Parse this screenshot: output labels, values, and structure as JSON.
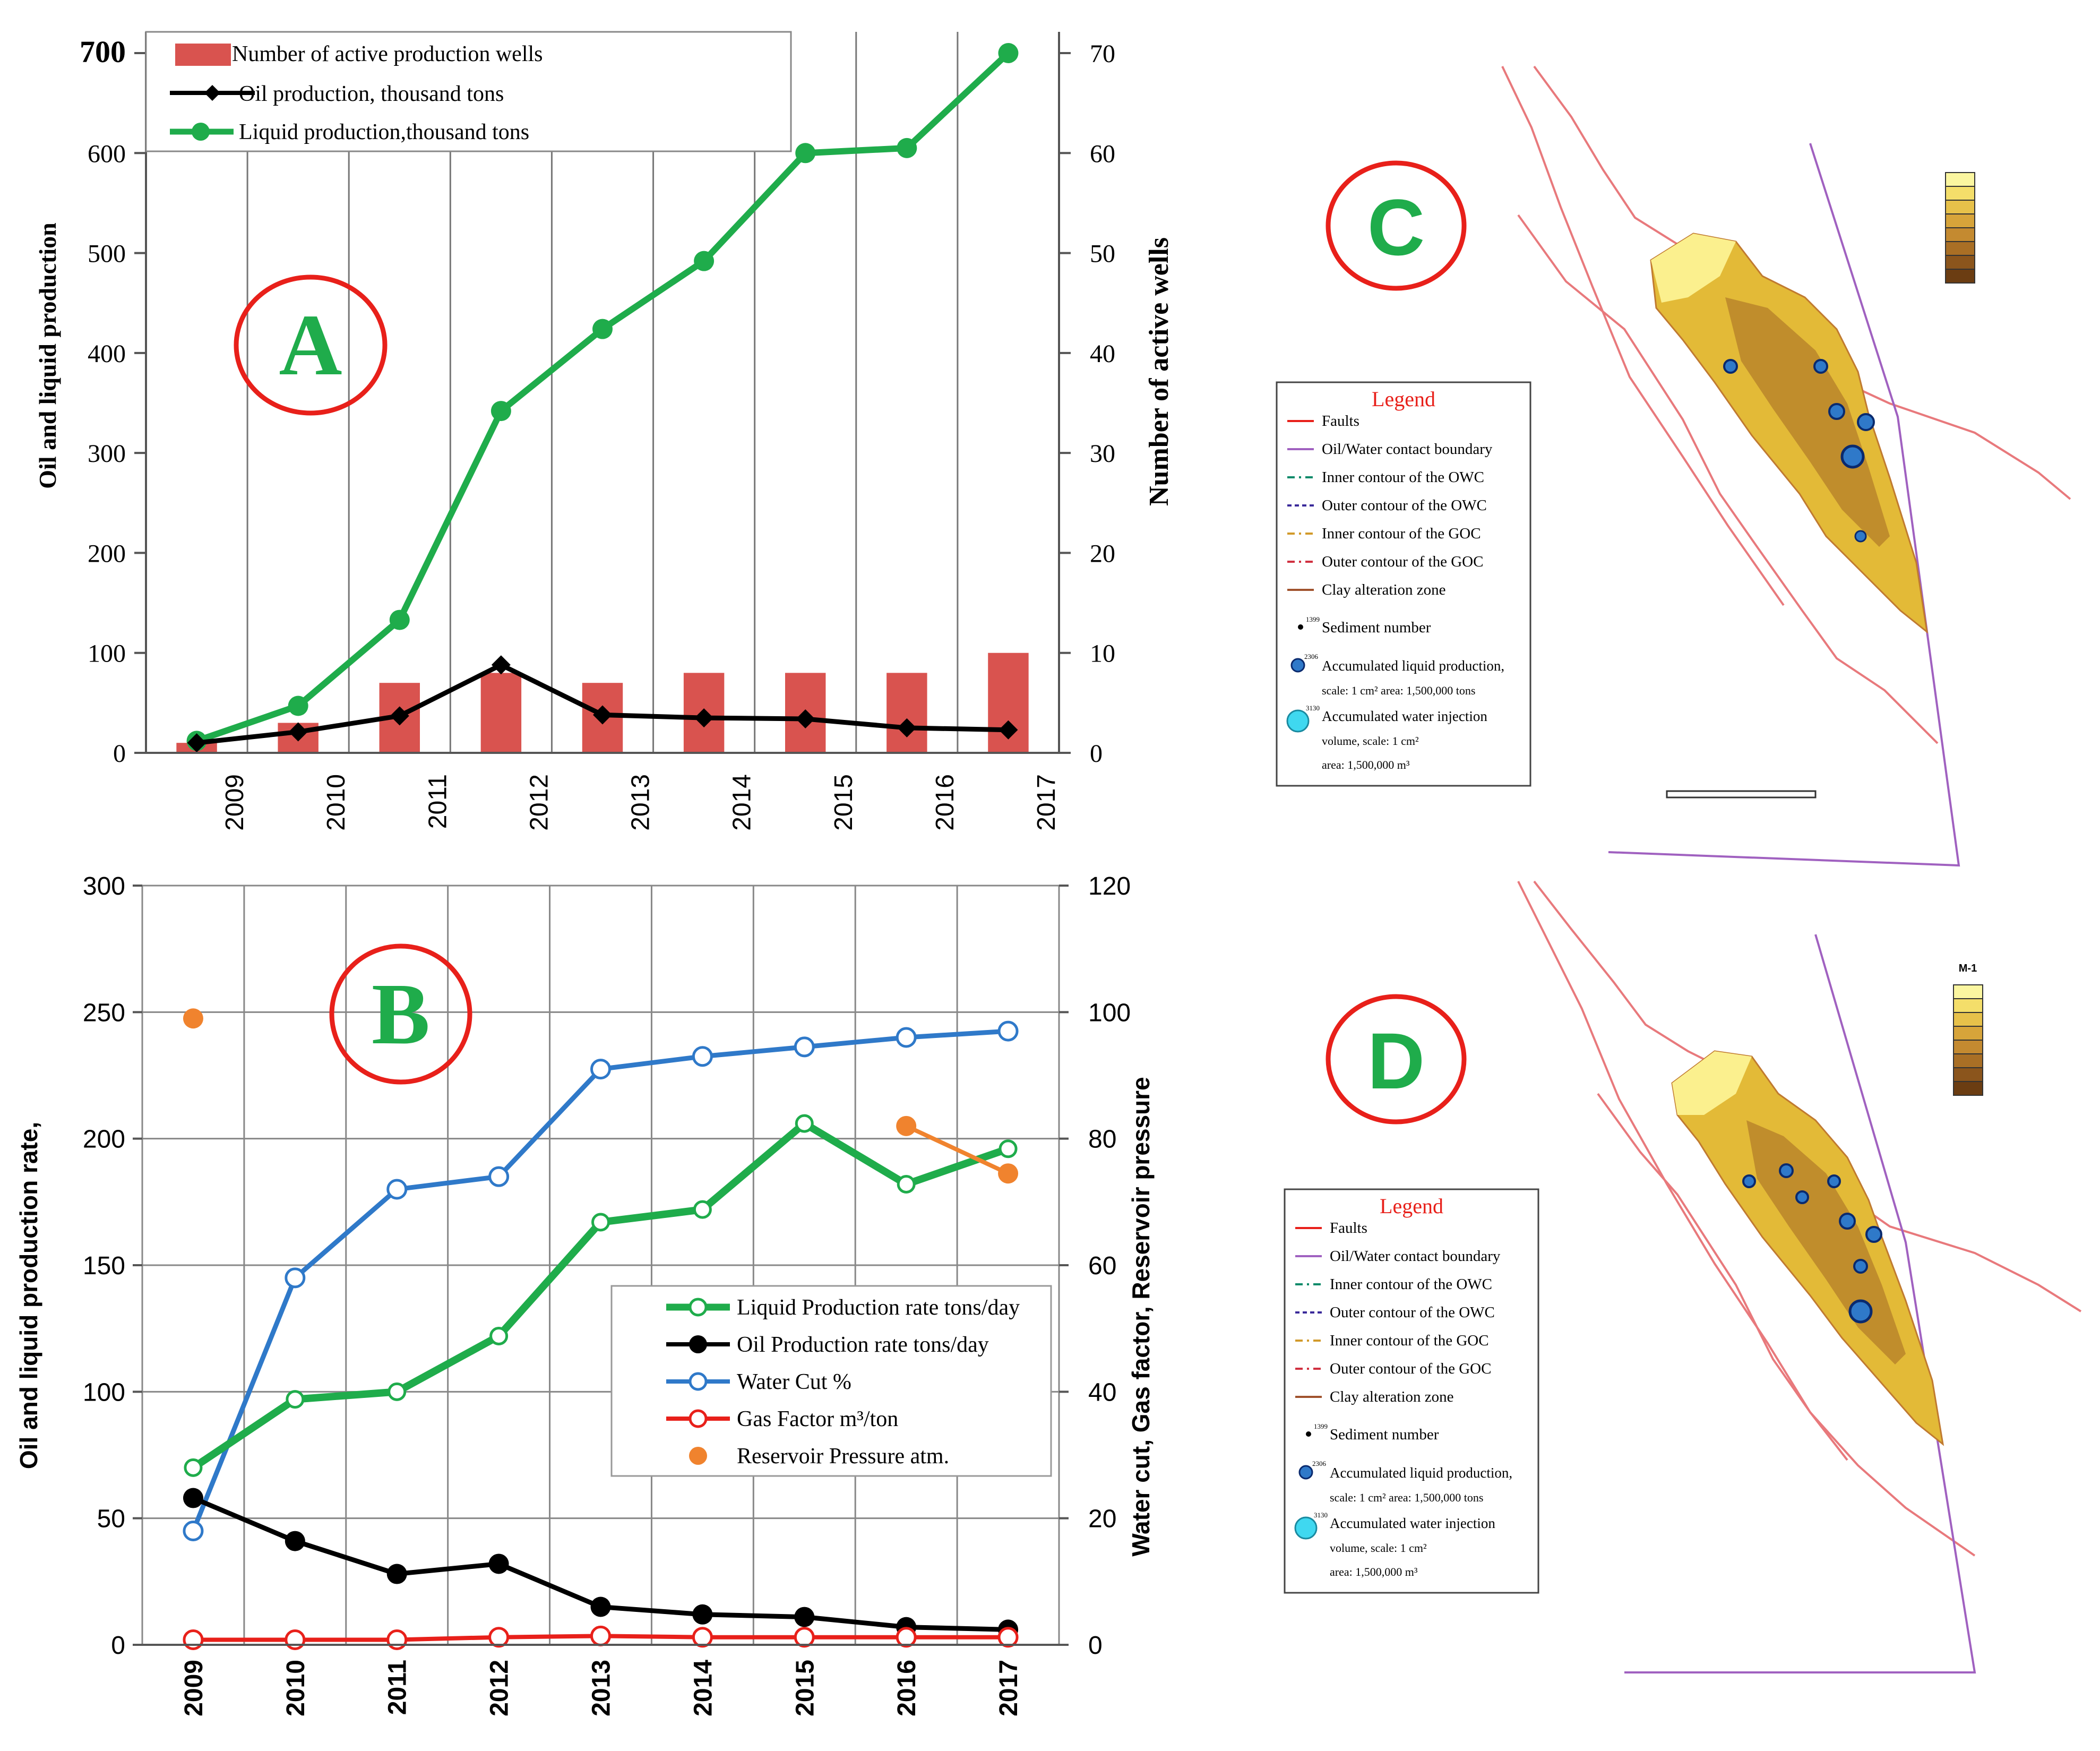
{
  "panel_labels": {
    "a": "A",
    "b": "B",
    "c": "C",
    "d": "D"
  },
  "colors": {
    "bar": "#d9534f",
    "green": "#1fac4b",
    "black": "#000000",
    "blue": "#2f79c9",
    "red": "#e8201a",
    "orange": "#f0832e",
    "label_red": "#e8201a",
    "label_green": "#1fac4b",
    "fault": "#e8797c",
    "owc": "#a061c0",
    "map_fill_light": "#fbf08e",
    "map_fill_mid": "#e3ba37",
    "map_fill_dark": "#b78229"
  },
  "chart_data": [
    {
      "id": "A",
      "type": "bar+line",
      "categories": [
        "2009",
        "2010",
        "2011",
        "2012",
        "2013",
        "2014",
        "2015",
        "2016",
        "2017"
      ],
      "y_left_label": "Oil and liquid production",
      "y_right_label": "Number of active wells",
      "y_left_ticks": [
        "0",
        "100",
        "200",
        "300",
        "400",
        "500",
        "600",
        "700"
      ],
      "y_right_ticks": [
        "0",
        "10",
        "20",
        "30",
        "40",
        "50",
        "60",
        "70"
      ],
      "y_left_range": [
        0,
        700
      ],
      "y_right_range": [
        0,
        70
      ],
      "legend": [
        "Number of active production wells",
        "Oil production, thousand tons",
        "Liquid production,thousand tons"
      ],
      "series": [
        {
          "name": "Number of active production wells",
          "axis": "right",
          "kind": "bar",
          "values": [
            1,
            3,
            7,
            8,
            7,
            8,
            8,
            8,
            10
          ]
        },
        {
          "name": "Oil production, thousand tons",
          "axis": "left",
          "kind": "line",
          "values": [
            10,
            21,
            37,
            88,
            38,
            35,
            34,
            25,
            23
          ]
        },
        {
          "name": "Liquid production,thousand tons",
          "axis": "left",
          "kind": "line",
          "values": [
            12,
            47,
            133,
            342,
            424,
            492,
            600,
            605,
            700
          ]
        }
      ]
    },
    {
      "id": "B",
      "type": "line",
      "categories": [
        "2009",
        "2010",
        "2011",
        "2012",
        "2013",
        "2014",
        "2015",
        "2016",
        "2017"
      ],
      "y_left_label": "Oil and liquid production rate,",
      "y_right_label": "Water cut, Gas factor, Reservoir pressure",
      "y_left_ticks": [
        "0",
        "50",
        "100",
        "150",
        "200",
        "250",
        "300"
      ],
      "y_right_ticks": [
        "0",
        "20",
        "40",
        "60",
        "80",
        "100",
        "120"
      ],
      "y_left_range": [
        0,
        300
      ],
      "y_right_range": [
        0,
        120
      ],
      "legend": [
        "Liquid Production rate tons/day",
        "Oil Production rate tons/day",
        "Water Cut %",
        "Gas Factor m³/ton",
        "Reservoir Pressure atm."
      ],
      "series": [
        {
          "name": "Liquid Production rate tons/day",
          "axis": "left",
          "values": [
            70,
            97,
            100,
            122,
            167,
            172,
            206,
            182,
            196
          ]
        },
        {
          "name": "Oil Production rate tons/day",
          "axis": "left",
          "values": [
            58,
            41,
            28,
            32,
            15,
            12,
            11,
            7,
            6
          ]
        },
        {
          "name": "Water Cut %",
          "axis": "right",
          "values": [
            18,
            58,
            72,
            74,
            91,
            93,
            94.5,
            96,
            97
          ]
        },
        {
          "name": "Gas Factor m³/ton",
          "axis": "right",
          "values": [
            0.8,
            0.8,
            0.8,
            1.2,
            1.4,
            1.2,
            1.2,
            1.2,
            1.2
          ]
        },
        {
          "name": "Reservoir Pressure atm.",
          "axis": "right",
          "values": [
            99,
            null,
            null,
            null,
            null,
            null,
            null,
            82,
            74.5
          ]
        }
      ]
    }
  ],
  "maps": {
    "legend_title": "Legend",
    "legend_items": [
      "Faults",
      "Oil/Water contact boundary",
      "Inner contour of the OWC",
      "Outer contour of the OWC",
      "Inner contour of the GOC",
      "Outer contour of the GOC",
      "Clay alteration zone",
      "Sediment number",
      "Accumulated liquid production,",
      "Accumulated water injection"
    ],
    "legend_extra": {
      "sediment_code": "1399",
      "liquid_code": "2306",
      "injection_code": "3130",
      "liquid_scale": "scale: 1 cm² area: 1,500,000 tons",
      "injection_scale_1": "volume, scale: 1 cm²",
      "injection_scale_2": "area: 1,500,000 m³"
    },
    "map_d_scale_title": "M-1"
  }
}
